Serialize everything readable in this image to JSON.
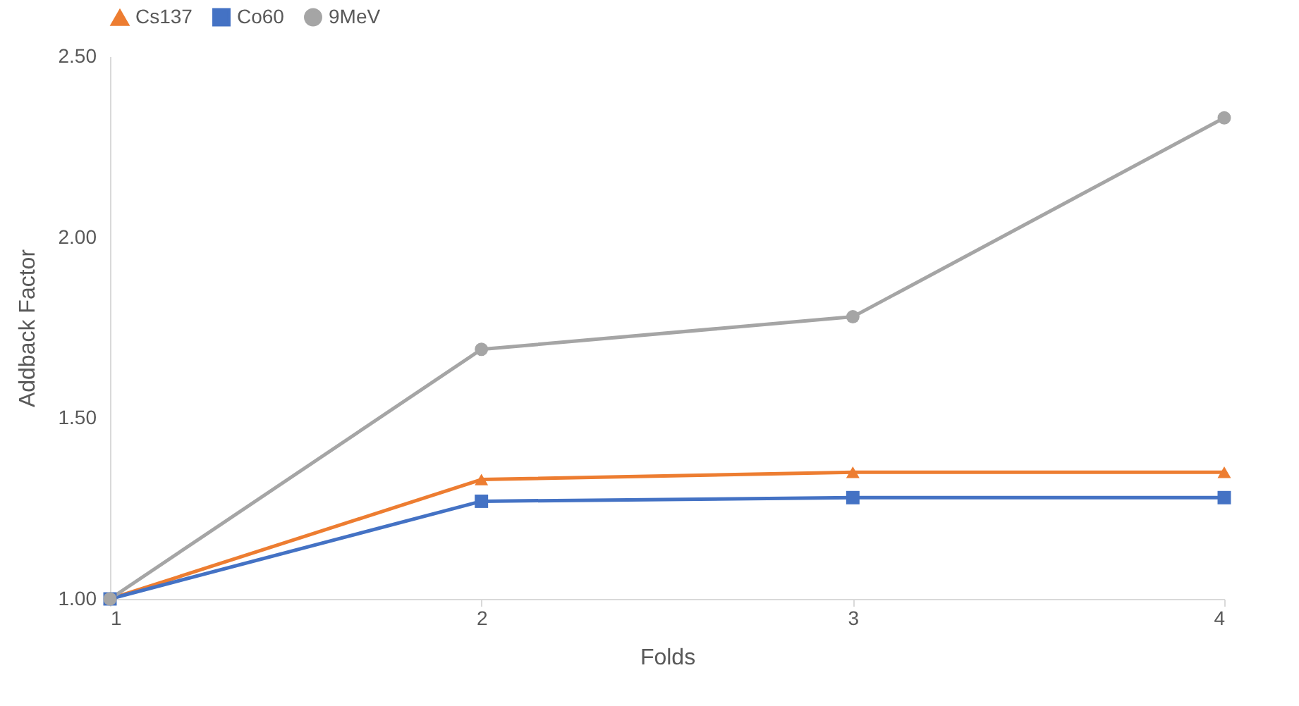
{
  "chart_data": {
    "type": "line",
    "xlabel": "Folds",
    "ylabel": "Addback Factor",
    "x": [
      1,
      2,
      3,
      4
    ],
    "series": [
      {
        "name": "Cs137",
        "color": "#ed7d31",
        "marker": "triangle",
        "values": [
          1.0,
          1.33,
          1.35,
          1.35
        ]
      },
      {
        "name": "Co60",
        "color": "#4472c4",
        "marker": "square",
        "values": [
          1.0,
          1.27,
          1.28,
          1.28
        ]
      },
      {
        "name": "9MeV",
        "color": "#a5a5a5",
        "marker": "circle",
        "values": [
          1.0,
          1.69,
          1.78,
          2.33
        ]
      }
    ],
    "xlim": [
      1,
      4
    ],
    "xticks": [
      1,
      2,
      3,
      4
    ],
    "ylim": [
      1.0,
      2.5
    ],
    "yticks": [
      {
        "value": 1.0,
        "label": "1.00"
      },
      {
        "value": 1.5,
        "label": "1.50"
      },
      {
        "value": 2.0,
        "label": "2.00"
      },
      {
        "value": 2.5,
        "label": "2.50"
      }
    ],
    "grid": false,
    "legend": "top",
    "line_style": "solid"
  }
}
